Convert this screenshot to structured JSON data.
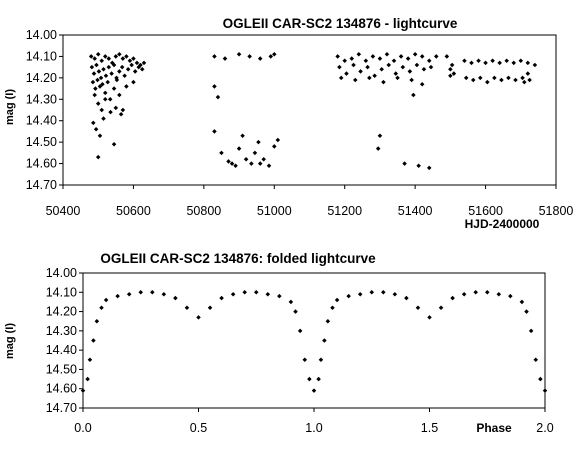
{
  "chart_data": [
    {
      "type": "scatter",
      "title": "OGLEII CAR-SC2 134876 - lightcurve",
      "xlabel": "HJD-2400000",
      "ylabel": "mag (I)",
      "xlim": [
        50400,
        51800
      ],
      "ylim": [
        14.0,
        14.7
      ],
      "y_inverted": true,
      "grid": false,
      "legend": "none",
      "marker_color": "#000000",
      "x_ticks": [
        "50400",
        "50600",
        "50800",
        "51000",
        "51200",
        "51400",
        "51600",
        "51800"
      ],
      "y_ticks": [
        "14.00",
        "14.10",
        "14.20",
        "14.30",
        "14.40",
        "14.50",
        "14.60",
        "14.70"
      ],
      "points": [
        [
          50480,
          14.1
        ],
        [
          50490,
          14.11
        ],
        [
          50500,
          14.09
        ],
        [
          50510,
          14.12
        ],
        [
          50520,
          14.1
        ],
        [
          50530,
          14.11
        ],
        [
          50540,
          14.13
        ],
        [
          50550,
          14.1
        ],
        [
          50560,
          14.09
        ],
        [
          50570,
          14.11
        ],
        [
          50580,
          14.1
        ],
        [
          50590,
          14.12
        ],
        [
          50600,
          14.11
        ],
        [
          50610,
          14.13
        ],
        [
          50620,
          14.14
        ],
        [
          50630,
          14.13
        ],
        [
          50482,
          14.15
        ],
        [
          50488,
          14.18
        ],
        [
          50495,
          14.14
        ],
        [
          50502,
          14.17
        ],
        [
          50508,
          14.2
        ],
        [
          50515,
          14.16
        ],
        [
          50522,
          14.19
        ],
        [
          50530,
          14.15
        ],
        [
          50538,
          14.18
        ],
        [
          50545,
          14.14
        ],
        [
          50552,
          14.2
        ],
        [
          50560,
          14.17
        ],
        [
          50568,
          14.15
        ],
        [
          50575,
          14.19
        ],
        [
          50585,
          14.16
        ],
        [
          50595,
          14.14
        ],
        [
          50605,
          14.17
        ],
        [
          50615,
          14.15
        ],
        [
          50625,
          14.16
        ],
        [
          50485,
          14.22
        ],
        [
          50492,
          14.25
        ],
        [
          50498,
          14.21
        ],
        [
          50505,
          14.24
        ],
        [
          50512,
          14.23
        ],
        [
          50520,
          14.27
        ],
        [
          50527,
          14.22
        ],
        [
          50534,
          14.3
        ],
        [
          50545,
          14.25
        ],
        [
          50553,
          14.21
        ],
        [
          50560,
          14.28
        ],
        [
          50580,
          14.24
        ],
        [
          50600,
          14.22
        ],
        [
          50490,
          14.28
        ],
        [
          50500,
          14.32
        ],
        [
          50510,
          14.35
        ],
        [
          50520,
          14.3
        ],
        [
          50535,
          14.36
        ],
        [
          50550,
          14.34
        ],
        [
          50565,
          14.37
        ],
        [
          50570,
          14.35
        ],
        [
          50486,
          14.41
        ],
        [
          50494,
          14.44
        ],
        [
          50505,
          14.47
        ],
        [
          50515,
          14.39
        ],
        [
          50545,
          14.51
        ],
        [
          50500,
          14.57
        ],
        [
          50830,
          14.1
        ],
        [
          50860,
          14.11
        ],
        [
          50900,
          14.09
        ],
        [
          50930,
          14.1
        ],
        [
          50960,
          14.11
        ],
        [
          50990,
          14.1
        ],
        [
          51000,
          14.09
        ],
        [
          50830,
          14.24
        ],
        [
          50840,
          14.29
        ],
        [
          50830,
          14.45
        ],
        [
          50850,
          14.55
        ],
        [
          50870,
          14.59
        ],
        [
          50890,
          14.61
        ],
        [
          50900,
          14.53
        ],
        [
          50910,
          14.47
        ],
        [
          50920,
          14.58
        ],
        [
          50935,
          14.6
        ],
        [
          50945,
          14.55
        ],
        [
          50955,
          14.5
        ],
        [
          50970,
          14.58
        ],
        [
          50985,
          14.61
        ],
        [
          51000,
          14.52
        ],
        [
          51010,
          14.49
        ],
        [
          50880,
          14.6
        ],
        [
          50960,
          14.6
        ],
        [
          51180,
          14.1
        ],
        [
          51200,
          14.12
        ],
        [
          51220,
          14.11
        ],
        [
          51240,
          14.09
        ],
        [
          51260,
          14.12
        ],
        [
          51280,
          14.1
        ],
        [
          51300,
          14.11
        ],
        [
          51320,
          14.09
        ],
        [
          51340,
          14.12
        ],
        [
          51360,
          14.1
        ],
        [
          51380,
          14.11
        ],
        [
          51400,
          14.09
        ],
        [
          51420,
          14.1
        ],
        [
          51440,
          14.12
        ],
        [
          51460,
          14.1
        ],
        [
          51185,
          14.15
        ],
        [
          51205,
          14.18
        ],
        [
          51225,
          14.14
        ],
        [
          51245,
          14.17
        ],
        [
          51265,
          14.15
        ],
        [
          51285,
          14.19
        ],
        [
          51305,
          14.16
        ],
        [
          51325,
          14.14
        ],
        [
          51345,
          14.18
        ],
        [
          51365,
          14.15
        ],
        [
          51385,
          14.17
        ],
        [
          51405,
          14.14
        ],
        [
          51425,
          14.16
        ],
        [
          51445,
          14.15
        ],
        [
          51190,
          14.2
        ],
        [
          51230,
          14.21
        ],
        [
          51270,
          14.2
        ],
        [
          51310,
          14.22
        ],
        [
          51350,
          14.2
        ],
        [
          51390,
          14.21
        ],
        [
          51420,
          14.23
        ],
        [
          51395,
          14.28
        ],
        [
          51300,
          14.47
        ],
        [
          51295,
          14.53
        ],
        [
          51370,
          14.6
        ],
        [
          51410,
          14.61
        ],
        [
          51440,
          14.62
        ],
        [
          51490,
          14.1
        ],
        [
          51500,
          14.16
        ],
        [
          51505,
          14.14
        ],
        [
          51500,
          14.19
        ],
        [
          51510,
          14.18
        ],
        [
          51540,
          14.12
        ],
        [
          51560,
          14.13
        ],
        [
          51580,
          14.12
        ],
        [
          51600,
          14.13
        ],
        [
          51620,
          14.12
        ],
        [
          51640,
          14.13
        ],
        [
          51660,
          14.12
        ],
        [
          51680,
          14.13
        ],
        [
          51700,
          14.12
        ],
        [
          51720,
          14.13
        ],
        [
          51740,
          14.14
        ],
        [
          51545,
          14.2
        ],
        [
          51565,
          14.21
        ],
        [
          51585,
          14.2
        ],
        [
          51605,
          14.22
        ],
        [
          51625,
          14.2
        ],
        [
          51645,
          14.21
        ],
        [
          51665,
          14.2
        ],
        [
          51685,
          14.21
        ],
        [
          51705,
          14.2
        ],
        [
          51725,
          14.21
        ],
        [
          51710,
          14.22
        ],
        [
          51720,
          14.18
        ]
      ]
    },
    {
      "type": "scatter",
      "title": "OGLEII CAR-SC2 134876: folded lightcurve",
      "xlabel": "Phase",
      "ylabel": "mag (I)",
      "xlim": [
        0.0,
        2.0
      ],
      "ylim": [
        14.0,
        14.7
      ],
      "y_inverted": true,
      "grid": false,
      "legend": "none",
      "marker_color": "#000000",
      "x_ticks": [
        "0.0",
        "0.5",
        "1.0",
        "1.5",
        "2.0"
      ],
      "y_ticks": [
        "14.00",
        "14.10",
        "14.20",
        "14.30",
        "14.40",
        "14.50",
        "14.60",
        "14.70"
      ],
      "points": [
        [
          0.0,
          14.61
        ],
        [
          0.02,
          14.55
        ],
        [
          0.03,
          14.45
        ],
        [
          0.045,
          14.35
        ],
        [
          0.06,
          14.25
        ],
        [
          0.08,
          14.18
        ],
        [
          0.1,
          14.14
        ],
        [
          0.15,
          14.12
        ],
        [
          0.2,
          14.11
        ],
        [
          0.25,
          14.1
        ],
        [
          0.3,
          14.1
        ],
        [
          0.35,
          14.11
        ],
        [
          0.4,
          14.13
        ],
        [
          0.45,
          14.18
        ],
        [
          0.5,
          14.23
        ],
        [
          0.55,
          14.18
        ],
        [
          0.6,
          14.13
        ],
        [
          0.65,
          14.11
        ],
        [
          0.7,
          14.1
        ],
        [
          0.75,
          14.1
        ],
        [
          0.8,
          14.11
        ],
        [
          0.85,
          14.12
        ],
        [
          0.9,
          14.15
        ],
        [
          0.92,
          14.2
        ],
        [
          0.94,
          14.3
        ],
        [
          0.96,
          14.45
        ],
        [
          0.98,
          14.55
        ],
        [
          1.0,
          14.61
        ],
        [
          1.02,
          14.55
        ],
        [
          1.03,
          14.45
        ],
        [
          1.045,
          14.35
        ],
        [
          1.06,
          14.25
        ],
        [
          1.08,
          14.18
        ],
        [
          1.1,
          14.14
        ],
        [
          1.15,
          14.12
        ],
        [
          1.2,
          14.11
        ],
        [
          1.25,
          14.1
        ],
        [
          1.3,
          14.1
        ],
        [
          1.35,
          14.11
        ],
        [
          1.4,
          14.13
        ],
        [
          1.45,
          14.18
        ],
        [
          1.5,
          14.23
        ],
        [
          1.55,
          14.18
        ],
        [
          1.6,
          14.13
        ],
        [
          1.65,
          14.11
        ],
        [
          1.7,
          14.1
        ],
        [
          1.75,
          14.1
        ],
        [
          1.8,
          14.11
        ],
        [
          1.85,
          14.12
        ],
        [
          1.9,
          14.15
        ],
        [
          1.92,
          14.2
        ],
        [
          1.94,
          14.3
        ],
        [
          1.96,
          14.45
        ],
        [
          1.98,
          14.55
        ],
        [
          2.0,
          14.61
        ]
      ]
    }
  ]
}
